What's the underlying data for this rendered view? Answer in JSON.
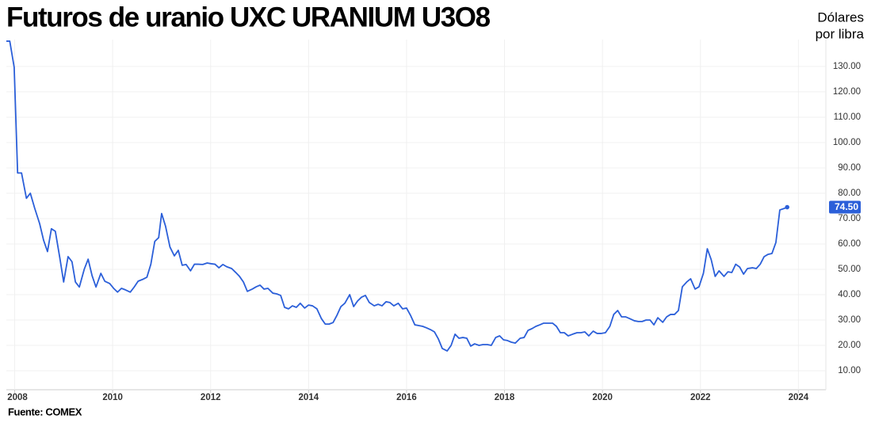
{
  "chart_data": {
    "type": "line",
    "title": "Futuros de uranio UXC URANIUM U3O8",
    "y_label": [
      "Dólares",
      "por libra"
    ],
    "source": "Fuente: COMEX",
    "xlim": [
      2007.83,
      2024.56
    ],
    "xticks": [
      2008,
      2010,
      2012,
      2014,
      2016,
      2018,
      2020,
      2022,
      2024
    ],
    "ylim": [
      2.5,
      140.6
    ],
    "yticks": [
      {
        "value": 10,
        "label": "10.00"
      },
      {
        "value": 20,
        "label": "20.00"
      },
      {
        "value": 30,
        "label": "30.00"
      },
      {
        "value": 40,
        "label": "40.00"
      },
      {
        "value": 50,
        "label": "50.00"
      },
      {
        "value": 60,
        "label": "60.00"
      },
      {
        "value": 70,
        "label": "70.00"
      },
      {
        "value": 80,
        "label": "80.00"
      },
      {
        "value": 90,
        "label": "90.00"
      },
      {
        "value": 100,
        "label": "100.00"
      },
      {
        "value": 110,
        "label": "110.00"
      },
      {
        "value": 120,
        "label": "120.00"
      },
      {
        "value": 130,
        "label": "130.00"
      }
    ],
    "grid": true,
    "current_price": {
      "value": 74.5,
      "label": "74.50"
    },
    "x": [
      2007.83,
      2007.9,
      2007.99,
      2008.06,
      2008.14,
      2008.24,
      2008.32,
      2008.41,
      2008.51,
      2008.59,
      2008.67,
      2008.75,
      2008.83,
      2008.92,
      2009.0,
      2009.09,
      2009.17,
      2009.24,
      2009.32,
      2009.42,
      2009.5,
      2009.58,
      2009.66,
      2009.76,
      2009.84,
      2009.94,
      2010.02,
      2010.1,
      2010.18,
      2010.26,
      2010.36,
      2010.44,
      2010.52,
      2010.61,
      2010.7,
      2010.78,
      2010.86,
      2010.94,
      2011.0,
      2011.08,
      2011.17,
      2011.26,
      2011.34,
      2011.42,
      2011.5,
      2011.59,
      2011.67,
      2011.75,
      2011.84,
      2011.93,
      2012.01,
      2012.09,
      2012.17,
      2012.25,
      2012.33,
      2012.43,
      2012.51,
      2012.59,
      2012.67,
      2012.75,
      2012.85,
      2012.93,
      2013.01,
      2013.09,
      2013.17,
      2013.27,
      2013.35,
      2013.43,
      2013.51,
      2013.59,
      2013.67,
      2013.75,
      2013.83,
      2013.92,
      2014.0,
      2014.08,
      2014.17,
      2014.26,
      2014.34,
      2014.42,
      2014.5,
      2014.58,
      2014.66,
      2014.74,
      2014.84,
      2014.92,
      2015.0,
      2015.08,
      2015.16,
      2015.24,
      2015.34,
      2015.42,
      2015.5,
      2015.58,
      2015.66,
      2015.74,
      2015.83,
      2015.92,
      2016.0,
      2016.08,
      2016.17,
      2016.25,
      2016.33,
      2016.41,
      2016.49,
      2016.57,
      2016.65,
      2016.73,
      2016.83,
      2016.91,
      2016.99,
      2017.07,
      2017.15,
      2017.23,
      2017.31,
      2017.39,
      2017.48,
      2017.56,
      2017.65,
      2017.73,
      2017.82,
      2017.9,
      2017.98,
      2018.06,
      2018.14,
      2018.22,
      2018.32,
      2018.4,
      2018.48,
      2018.56,
      2018.64,
      2018.72,
      2018.8,
      2018.9,
      2018.98,
      2019.06,
      2019.14,
      2019.22,
      2019.3,
      2019.39,
      2019.48,
      2019.56,
      2019.64,
      2019.72,
      2019.81,
      2019.89,
      2019.97,
      2020.06,
      2020.15,
      2020.23,
      2020.31,
      2020.39,
      2020.47,
      2020.55,
      2020.65,
      2020.73,
      2020.81,
      2020.89,
      2020.97,
      2021.05,
      2021.13,
      2021.23,
      2021.31,
      2021.39,
      2021.47,
      2021.55,
      2021.63,
      2021.72,
      2021.8,
      2021.89,
      2021.97,
      2022.06,
      2022.14,
      2022.22,
      2022.3,
      2022.38,
      2022.48,
      2022.56,
      2022.64,
      2022.72,
      2022.8,
      2022.88,
      2022.96,
      2023.06,
      2023.14,
      2023.22,
      2023.3,
      2023.38,
      2023.46,
      2023.54,
      2023.62,
      2023.71,
      2023.77
    ],
    "series": [
      {
        "name": "UXC URANIUM U3O8",
        "color": "#2b5fd9",
        "values": [
          140,
          140,
          129.7,
          88,
          88,
          78,
          80,
          74,
          68,
          61.5,
          57,
          66,
          65,
          54.7,
          45,
          55,
          53,
          45,
          43,
          50,
          54,
          47.5,
          43,
          48.4,
          45.3,
          44.4,
          42.5,
          41,
          42.5,
          41.9,
          41,
          43,
          45.3,
          46,
          46.9,
          52,
          61,
          62.5,
          72,
          67,
          58.8,
          55.3,
          57.5,
          51.6,
          51.9,
          49.4,
          52,
          52,
          51.9,
          52.5,
          52.2,
          52,
          50.6,
          51.9,
          51,
          50.3,
          48.8,
          47.2,
          45,
          41.3,
          42.2,
          43.1,
          43.75,
          42.2,
          42.5,
          40.6,
          40.3,
          39.7,
          35,
          34.4,
          35.6,
          35,
          36.6,
          34.7,
          35.9,
          35.6,
          34.4,
          30.6,
          28.4,
          28.4,
          29,
          31.9,
          35.3,
          36.6,
          40,
          35.3,
          37.5,
          39,
          39.7,
          36.9,
          35.6,
          36.2,
          35.6,
          37.2,
          36.9,
          35.6,
          36.6,
          34.4,
          34.7,
          31.9,
          28.1,
          27.8,
          27.5,
          26.9,
          26.2,
          25.3,
          22.5,
          18.75,
          17.8,
          20,
          24.4,
          22.8,
          23.1,
          22.8,
          19.7,
          20.6,
          20,
          20.3,
          20.3,
          20,
          23.1,
          23.75,
          22.2,
          21.9,
          21.25,
          20.9,
          22.8,
          23.1,
          25.9,
          26.6,
          27.5,
          28.1,
          28.75,
          28.75,
          28.75,
          27.5,
          25,
          25,
          23.75,
          24.4,
          25,
          25,
          25.3,
          23.75,
          25.6,
          24.7,
          24.7,
          25,
          27.5,
          32.2,
          33.75,
          31.25,
          31.25,
          30.6,
          29.7,
          29.4,
          29.4,
          30,
          30,
          28.1,
          30.9,
          29.1,
          31.25,
          32.2,
          32.2,
          33.75,
          43.1,
          45,
          46.25,
          42.2,
          43.1,
          48.4,
          58.1,
          53.75,
          47.2,
          49.4,
          47.2,
          49,
          48.75,
          52,
          50.9,
          48.1,
          50.3,
          50.6,
          50.3,
          52,
          55,
          55.9,
          56.25,
          60.6,
          73.4,
          74,
          74.5
        ]
      }
    ]
  }
}
